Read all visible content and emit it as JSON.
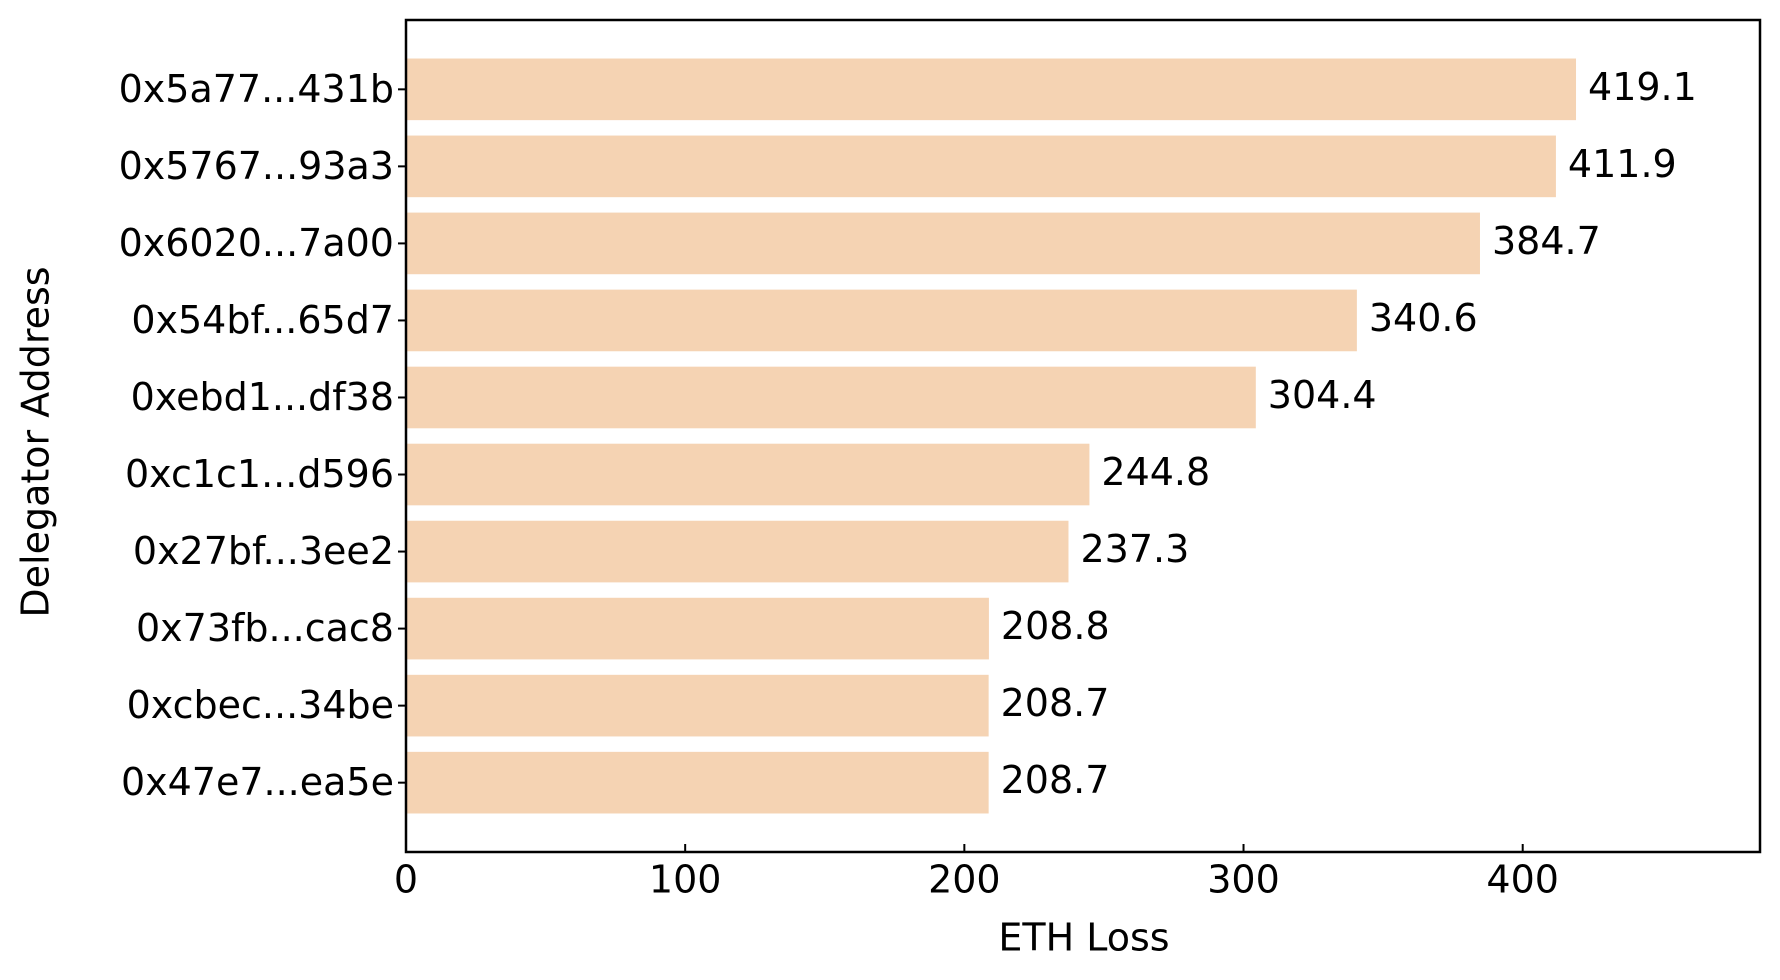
{
  "chart_data": {
    "type": "bar",
    "orientation": "horizontal",
    "x_label": "ETH Loss",
    "y_label": "Delegator Address",
    "categories": [
      "0x5a77...431b",
      "0x5767...93a3",
      "0x6020...7a00",
      "0x54bf...65d7",
      "0xebd1...df38",
      "0xc1c1...d596",
      "0x27bf...3ee2",
      "0x73fb...cac8",
      "0xcbec...34be",
      "0x47e7...ea5e"
    ],
    "values": [
      419.1,
      411.9,
      384.7,
      340.6,
      304.4,
      244.8,
      237.3,
      208.8,
      208.7,
      208.7
    ],
    "color": "#f5d3b3",
    "xlim": [
      0,
      485
    ],
    "xticks": [
      0,
      100,
      200,
      300,
      400
    ]
  }
}
